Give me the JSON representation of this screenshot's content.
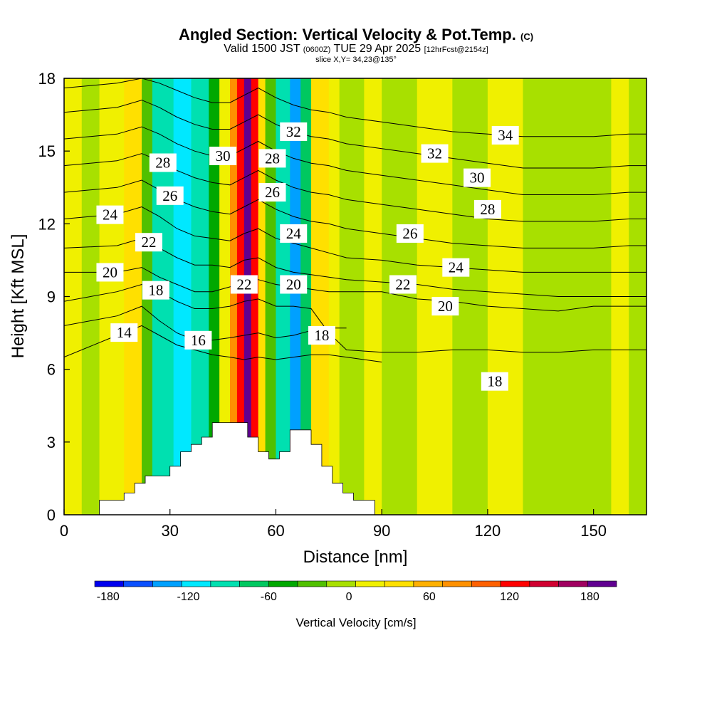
{
  "titles": {
    "main": "Angled Section: Vertical Velocity & Pot.Temp.",
    "main_unit": "(C)",
    "valid_prefix": "Valid 1500 JST",
    "valid_z": "(0600Z)",
    "valid_date": "TUE 29 Apr 2025",
    "fcst": "[12hrFcst@2154z]",
    "slice": "slice X,Y= 34,23@135°"
  },
  "chart_data": {
    "type": "heatmap",
    "xlabel": "Distance [nm]",
    "ylabel": "Height [Kft MSL]",
    "xlim": [
      0,
      165
    ],
    "ylim": [
      0,
      18
    ],
    "x_ticks": [
      0,
      30,
      60,
      90,
      120,
      150
    ],
    "y_ticks": [
      0,
      3,
      6,
      9,
      12,
      15,
      18
    ],
    "colorbar": {
      "label": "Vertical Velocity [cm/s]",
      "range": [
        -190,
        200
      ],
      "ticks": [
        -180,
        -120,
        -60,
        0,
        60,
        120,
        180
      ],
      "colors": [
        "#0000ee",
        "#0a50ff",
        "#00a0ff",
        "#00e8ff",
        "#00e0b0",
        "#00c860",
        "#00a800",
        "#50c000",
        "#a8e000",
        "#f0f000",
        "#ffe000",
        "#ffb000",
        "#ff9000",
        "#ff6000",
        "#ff0000",
        "#d00030",
        "#a00060",
        "#600090"
      ]
    },
    "velocity_columns": [
      {
        "x0": 0,
        "x1": 5,
        "value": 5
      },
      {
        "x0": 5,
        "x1": 10,
        "value": 2
      },
      {
        "x0": 10,
        "x1": 17,
        "value": 10
      },
      {
        "x0": 17,
        "x1": 22,
        "value": 40
      },
      {
        "x0": 22,
        "x1": 25,
        "value": -35
      },
      {
        "x0": 25,
        "x1": 31,
        "value": -90
      },
      {
        "x0": 31,
        "x1": 36,
        "value": -125
      },
      {
        "x0": 36,
        "x1": 41,
        "value": -95
      },
      {
        "x0": 41,
        "x1": 44,
        "value": -45
      },
      {
        "x0": 44,
        "x1": 47,
        "value": 15
      },
      {
        "x0": 47,
        "x1": 49,
        "value": 70
      },
      {
        "x0": 49,
        "x1": 51,
        "value": 130
      },
      {
        "x0": 51,
        "x1": 53,
        "value": 185
      },
      {
        "x0": 53,
        "x1": 55,
        "value": 120
      },
      {
        "x0": 55,
        "x1": 57,
        "value": 40
      },
      {
        "x0": 57,
        "x1": 60,
        "value": -30
      },
      {
        "x0": 60,
        "x1": 64,
        "value": -85
      },
      {
        "x0": 64,
        "x1": 67,
        "value": -140
      },
      {
        "x0": 67,
        "x1": 70,
        "value": -80
      },
      {
        "x0": 70,
        "x1": 75,
        "value": 30
      },
      {
        "x0": 75,
        "x1": 78,
        "value": 5
      },
      {
        "x0": 78,
        "x1": 85,
        "value": -15
      },
      {
        "x0": 85,
        "x1": 90,
        "value": 8
      },
      {
        "x0": 90,
        "x1": 100,
        "value": -5
      },
      {
        "x0": 100,
        "x1": 110,
        "value": 5
      },
      {
        "x0": 110,
        "x1": 120,
        "value": -10
      },
      {
        "x0": 120,
        "x1": 130,
        "value": 10
      },
      {
        "x0": 130,
        "x1": 145,
        "value": -5
      },
      {
        "x0": 145,
        "x1": 155,
        "value": -15
      },
      {
        "x0": 155,
        "x1": 160,
        "value": 5
      },
      {
        "x0": 160,
        "x1": 165,
        "value": -10
      }
    ],
    "terrain": [
      [
        10,
        0
      ],
      [
        10,
        0.6
      ],
      [
        17,
        0.6
      ],
      [
        17,
        0.9
      ],
      [
        20,
        0.9
      ],
      [
        20,
        1.3
      ],
      [
        23,
        1.3
      ],
      [
        23,
        1.6
      ],
      [
        30,
        1.6
      ],
      [
        30,
        2.0
      ],
      [
        33,
        2.0
      ],
      [
        33,
        2.6
      ],
      [
        36,
        2.6
      ],
      [
        36,
        2.9
      ],
      [
        39,
        2.9
      ],
      [
        39,
        3.2
      ],
      [
        42,
        3.2
      ],
      [
        42,
        3.8
      ],
      [
        52,
        3.8
      ],
      [
        52,
        3.2
      ],
      [
        55,
        3.2
      ],
      [
        55,
        2.6
      ],
      [
        58,
        2.6
      ],
      [
        58,
        2.3
      ],
      [
        61,
        2.3
      ],
      [
        61,
        2.6
      ],
      [
        64,
        2.6
      ],
      [
        64,
        3.5
      ],
      [
        70,
        3.5
      ],
      [
        70,
        2.9
      ],
      [
        73,
        2.9
      ],
      [
        73,
        2.0
      ],
      [
        76,
        2.0
      ],
      [
        76,
        1.3
      ],
      [
        79,
        1.3
      ],
      [
        79,
        0.9
      ],
      [
        82,
        0.9
      ],
      [
        82,
        0.6
      ],
      [
        88,
        0.6
      ],
      [
        88,
        0
      ]
    ],
    "theta_contours": [
      {
        "value": 14,
        "label": true,
        "label_x": 17,
        "x": [
          0,
          15,
          22,
          27,
          32,
          37,
          42,
          47,
          51,
          55,
          60,
          65,
          70,
          75,
          80,
          90
        ],
        "y": [
          6.5,
          7.4,
          7.8,
          7.4,
          7.0,
          6.8,
          6.6,
          6.5,
          6.4,
          6.5,
          6.4,
          6.5,
          6.6,
          6.6,
          6.5,
          6.3
        ]
      },
      {
        "value": 16,
        "label": true,
        "label_x": 38,
        "x": [
          0,
          15,
          22,
          27,
          32,
          37,
          42,
          47,
          51,
          55,
          60,
          65,
          70,
          75,
          80
        ],
        "y": [
          7.8,
          8.2,
          8.6,
          8.0,
          7.5,
          7.2,
          7.2,
          7.3,
          7.4,
          7.5,
          7.3,
          7.4,
          7.6,
          7.7,
          7.7
        ]
      },
      {
        "value": 18,
        "label": true,
        "label_x": 26,
        "x": [
          0,
          15,
          22,
          27,
          32,
          37,
          42,
          47,
          51,
          55,
          60,
          65,
          70,
          75,
          80,
          90,
          100,
          110,
          120,
          130,
          140,
          150,
          160,
          165
        ],
        "y": [
          8.8,
          9.2,
          9.5,
          9.2,
          8.8,
          8.5,
          8.5,
          8.6,
          8.8,
          8.9,
          8.6,
          8.6,
          8.5,
          7.5,
          6.8,
          6.7,
          6.7,
          6.8,
          6.8,
          6.7,
          6.7,
          6.8,
          6.8,
          6.8
        ]
      },
      {
        "value": 20,
        "label": true,
        "label_x": 13,
        "x": [
          0,
          15,
          22,
          27,
          32,
          37,
          42,
          47,
          51,
          55,
          60,
          65,
          70,
          75,
          80,
          90,
          100,
          110,
          120,
          130,
          140,
          150,
          160,
          165
        ],
        "y": [
          10.0,
          10.0,
          10.2,
          9.8,
          9.5,
          9.2,
          9.2,
          9.4,
          9.6,
          9.7,
          9.5,
          9.4,
          9.3,
          9.2,
          9.2,
          9.2,
          8.9,
          8.8,
          8.6,
          8.5,
          8.4,
          8.6,
          8.6,
          8.6
        ]
      },
      {
        "value": 22,
        "label": true,
        "label_x": 24,
        "x": [
          0,
          15,
          22,
          27,
          32,
          37,
          42,
          47,
          51,
          55,
          60,
          65,
          70,
          75,
          80,
          90,
          100,
          110,
          120,
          130,
          140,
          150,
          160,
          165
        ],
        "y": [
          11.0,
          11.1,
          11.4,
          11.0,
          10.6,
          10.3,
          10.3,
          10.2,
          10.5,
          10.6,
          10.2,
          10.0,
          9.9,
          9.8,
          9.7,
          9.6,
          9.5,
          9.3,
          9.2,
          9.1,
          9.0,
          9.0,
          9.0,
          9.0
        ]
      },
      {
        "value": 24,
        "label": true,
        "label_x": 13,
        "x": [
          0,
          15,
          22,
          27,
          32,
          37,
          42,
          47,
          51,
          55,
          60,
          65,
          70,
          75,
          80,
          90,
          100,
          110,
          120,
          130,
          140,
          150,
          160,
          165
        ],
        "y": [
          12.2,
          12.4,
          12.7,
          12.3,
          11.8,
          11.5,
          11.4,
          11.3,
          11.6,
          11.8,
          11.4,
          11.2,
          11.0,
          10.8,
          10.6,
          10.5,
          10.3,
          10.2,
          10.1,
          10.0,
          10.0,
          10.0,
          10.0,
          10.0
        ]
      },
      {
        "value": 26,
        "label": true,
        "label_x": 30,
        "x": [
          0,
          15,
          22,
          27,
          32,
          37,
          42,
          47,
          51,
          55,
          60,
          65,
          70,
          75,
          80,
          90,
          100,
          110,
          120,
          130,
          140,
          150,
          160,
          165
        ],
        "y": [
          13.3,
          13.5,
          13.8,
          13.4,
          13.0,
          12.7,
          12.5,
          12.4,
          12.7,
          13.0,
          12.6,
          12.3,
          12.1,
          12.0,
          11.8,
          11.6,
          11.4,
          11.2,
          11.1,
          11.0,
          11.0,
          11.0,
          11.1,
          11.1
        ]
      },
      {
        "value": 28,
        "label": true,
        "label_x": 28,
        "x": [
          0,
          15,
          22,
          27,
          32,
          37,
          42,
          47,
          51,
          55,
          60,
          65,
          70,
          75,
          80,
          90,
          100,
          110,
          120,
          130,
          140,
          150,
          160,
          165
        ],
        "y": [
          14.4,
          14.6,
          14.9,
          14.6,
          14.2,
          13.9,
          13.7,
          13.6,
          13.9,
          14.2,
          13.8,
          13.5,
          13.3,
          13.2,
          13.0,
          12.8,
          12.6,
          12.4,
          12.2,
          12.1,
          12.1,
          12.1,
          12.2,
          12.2
        ]
      },
      {
        "value": 30,
        "label": true,
        "label_x": 45,
        "x": [
          0,
          15,
          22,
          27,
          32,
          37,
          42,
          47,
          51,
          55,
          60,
          65,
          70,
          75,
          80,
          90,
          100,
          110,
          120,
          130,
          140,
          150,
          160,
          165
        ],
        "y": [
          15.5,
          15.7,
          16.0,
          15.7,
          15.3,
          15.0,
          14.8,
          14.8,
          15.1,
          15.4,
          15.0,
          14.7,
          14.5,
          14.4,
          14.2,
          14.0,
          13.8,
          13.6,
          13.4,
          13.2,
          13.2,
          13.2,
          13.3,
          13.3
        ]
      },
      {
        "value": 32,
        "label": true,
        "label_x": 65,
        "x": [
          0,
          15,
          22,
          27,
          32,
          37,
          42,
          47,
          51,
          55,
          60,
          65,
          70,
          75,
          80,
          90,
          100,
          110,
          120,
          130,
          140,
          150,
          160,
          165
        ],
        "y": [
          16.6,
          16.8,
          17.1,
          16.8,
          16.4,
          16.1,
          15.9,
          15.9,
          16.2,
          16.5,
          16.1,
          15.8,
          15.6,
          15.5,
          15.3,
          15.1,
          14.9,
          14.7,
          14.5,
          14.3,
          14.3,
          14.3,
          14.4,
          14.4
        ]
      },
      {
        "value": 34,
        "label": true,
        "label_x": 125,
        "x": [
          0,
          15,
          22,
          27,
          32,
          37,
          42,
          47,
          51,
          55,
          60,
          65,
          70,
          75,
          80,
          90,
          100,
          110,
          120,
          130,
          140,
          150,
          160,
          165
        ],
        "y": [
          17.6,
          17.8,
          18.0,
          17.8,
          17.5,
          17.2,
          17.0,
          17.0,
          17.3,
          17.6,
          17.2,
          16.9,
          16.7,
          16.6,
          16.4,
          16.2,
          16.0,
          15.8,
          15.7,
          15.6,
          15.6,
          15.6,
          15.7,
          15.7
        ]
      }
    ],
    "label_overrides": [
      {
        "text": "32",
        "x": 105,
        "y": 14.9
      },
      {
        "text": "30",
        "x": 117,
        "y": 13.9
      },
      {
        "text": "28",
        "x": 120,
        "y": 12.6
      },
      {
        "text": "26",
        "x": 98,
        "y": 11.6
      },
      {
        "text": "24",
        "x": 111,
        "y": 10.2
      },
      {
        "text": "24",
        "x": 65,
        "y": 11.6
      },
      {
        "text": "22",
        "x": 96,
        "y": 9.5
      },
      {
        "text": "22",
        "x": 51,
        "y": 9.5
      },
      {
        "text": "20",
        "x": 108,
        "y": 8.6
      },
      {
        "text": "20",
        "x": 65,
        "y": 9.5
      },
      {
        "text": "18",
        "x": 73,
        "y": 7.4
      },
      {
        "text": "18",
        "x": 122,
        "y": 5.5
      },
      {
        "text": "26",
        "x": 59,
        "y": 13.3
      },
      {
        "text": "28",
        "x": 59,
        "y": 14.7
      }
    ]
  }
}
